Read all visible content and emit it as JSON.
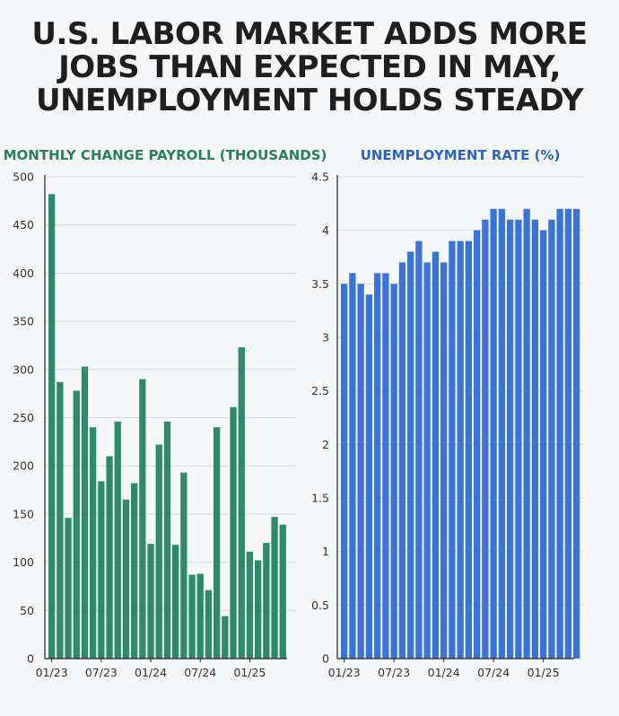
{
  "title_lines": [
    "U.S. LABOR MARKET ADDS MORE",
    "JOBS THAN EXPECTED IN MAY,",
    "UNEMPLOYMENT HOLDS STEADY"
  ],
  "chart_data": [
    {
      "type": "bar",
      "title": "MONTHLY CHANGE PAYROLL (THOUSANDS)",
      "color": "#2f8a6a",
      "ylim": [
        0,
        500
      ],
      "yticks": [
        "0",
        "50",
        "100",
        "150",
        "200",
        "250",
        "300",
        "350",
        "400",
        "450",
        "500"
      ],
      "xticks": [
        "01/23",
        "07/23",
        "01/24",
        "07/24",
        "01/25"
      ],
      "grid": true,
      "values": [
        482,
        287,
        146,
        278,
        303,
        240,
        184,
        210,
        246,
        165,
        182,
        290,
        119,
        222,
        246,
        118,
        193,
        87,
        88,
        71,
        240,
        44,
        261,
        323,
        111,
        102,
        120,
        147,
        139
      ]
    },
    {
      "type": "bar",
      "title": "UNEMPLOYMENT RATE (%)",
      "color": "#3b74d9",
      "ylim": [
        0,
        4.5
      ],
      "yticks": [
        "0",
        "0.5",
        "1",
        "1.5",
        "2",
        "2.5",
        "3",
        "3.5",
        "4",
        "4.5"
      ],
      "xticks": [
        "01/23",
        "07/23",
        "01/24",
        "07/24",
        "01/25"
      ],
      "grid": true,
      "values": [
        3.5,
        3.6,
        3.5,
        3.4,
        3.6,
        3.6,
        3.5,
        3.7,
        3.8,
        3.9,
        3.7,
        3.8,
        3.7,
        3.9,
        3.9,
        3.9,
        4.0,
        4.1,
        4.2,
        4.2,
        4.1,
        4.1,
        4.2,
        4.1,
        4.0,
        4.1,
        4.2,
        4.2,
        4.2
      ]
    }
  ]
}
